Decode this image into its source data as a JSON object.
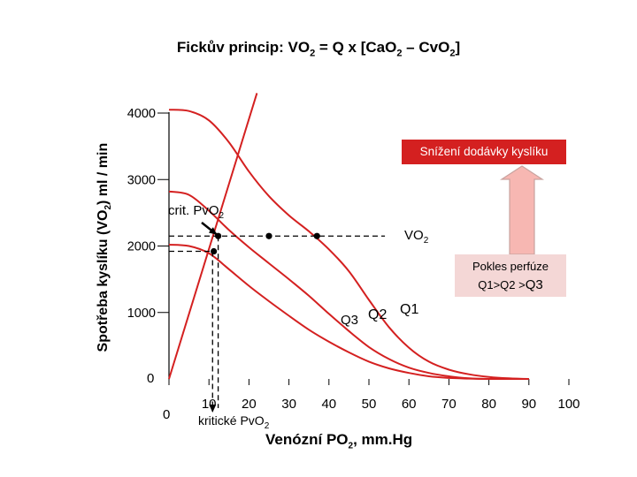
{
  "title": {
    "prefix": "Fickův princip:  VO",
    "sub1": "2",
    "mid1": " = Q x [CaO",
    "sub2": "2",
    "mid2": " – CvO",
    "sub3": "2",
    "suffix": "]"
  },
  "colors": {
    "curve": "#d42020",
    "axis": "#000000",
    "box_red": "#d42020",
    "box_pink": "#f4d7d6",
    "arrow_pink": "#f7b7b2"
  },
  "chart_data": {
    "type": "line",
    "title": "Fickův princip: VO2 = Q x [CaO2 – CvO2]",
    "ylabel": {
      "text": "Spotřeba kyslíku (VO",
      "sub": "2",
      "tail": ") ml / min"
    },
    "xlabel": {
      "text": "Venózní PO",
      "sub": "2",
      "tail": ", mm.Hg"
    },
    "xlim": [
      0,
      100
    ],
    "ylim": [
      0,
      4000
    ],
    "x_ticks": [
      "0",
      "10",
      "20",
      "30",
      "40",
      "50",
      "60",
      "70",
      "80",
      "90",
      "100"
    ],
    "y_ticks": [
      "0",
      "1000",
      "2000",
      "3000",
      "4000"
    ],
    "series": [
      {
        "name": "Q1",
        "x": [
          0,
          5,
          10,
          15,
          20,
          25,
          30,
          35,
          40,
          45,
          50,
          55,
          60,
          65,
          70,
          75,
          80,
          85,
          90
        ],
        "values": [
          4050,
          4030,
          3890,
          3560,
          3120,
          2750,
          2460,
          2220,
          1950,
          1620,
          1190,
          780,
          470,
          260,
          140,
          70,
          30,
          10,
          0
        ]
      },
      {
        "name": "Q2",
        "x": [
          0,
          5,
          10,
          15,
          20,
          25,
          30,
          35,
          40,
          45,
          50,
          55,
          60,
          65,
          70,
          75,
          80,
          85,
          90
        ],
        "values": [
          2820,
          2770,
          2530,
          2240,
          1980,
          1740,
          1500,
          1250,
          980,
          720,
          480,
          300,
          170,
          90,
          40,
          10,
          0,
          0,
          0
        ]
      },
      {
        "name": "Q3",
        "x": [
          0,
          5,
          10,
          15,
          20,
          25,
          30,
          35,
          40,
          45,
          50,
          55,
          60,
          65,
          70,
          75,
          80,
          85,
          90
        ],
        "values": [
          2020,
          2000,
          1890,
          1650,
          1400,
          1170,
          950,
          740,
          560,
          400,
          260,
          160,
          90,
          40,
          15,
          5,
          0,
          0,
          0
        ]
      },
      {
        "name": "VO2",
        "x": [
          0,
          22
        ],
        "values": [
          0,
          4300
        ]
      }
    ],
    "vo2_level": 2150,
    "vo2_level_x_end": 54,
    "points": [
      {
        "x": 12.3,
        "y": 2150
      },
      {
        "x": 25,
        "y": 2150
      },
      {
        "x": 37,
        "y": 2150
      },
      {
        "x": 11.2,
        "y": 1920
      }
    ],
    "critical_pvo2": [
      10.9,
      12.3
    ],
    "annotations": {
      "crit": {
        "text": "crit. PvO",
        "sub": "2"
      },
      "vo2": {
        "text": "VO",
        "sub": "2"
      },
      "q3": "Q3",
      "q2": "Q2",
      "q1": "Q1",
      "zero_y": "0",
      "zero_x": "0",
      "kriticke": {
        "text": "kritické PvO",
        "sub": "2"
      },
      "snizeni": "Snížení dodávky kyslíku",
      "pokles_line1": "Pokles perfúze",
      "pokles_line2": "Q1>Q2 >",
      "pokles_line2_big": "Q3"
    }
  }
}
